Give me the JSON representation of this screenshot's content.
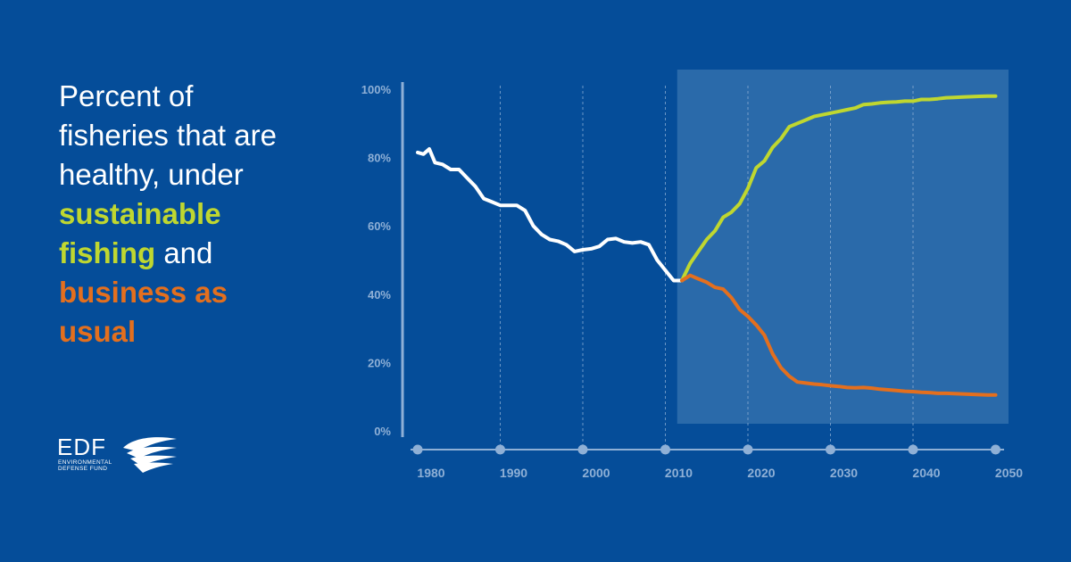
{
  "headline": {
    "line1": "Percent of",
    "line2": "fisheries that are",
    "line3": "healthy, under",
    "green1": "sustainable",
    "green2": "fishing",
    "mid": " and",
    "orange1": "business as",
    "orange2": "usual"
  },
  "colors": {
    "background": "#054d99",
    "historical": "#ffffff",
    "sustainable": "#bfd730",
    "business_as_usual": "#e36f1e",
    "projection_band": "#2a6aaa",
    "axis": "#8fb0d6"
  },
  "logo": {
    "name": "EDF",
    "subtitle_line1": "ENVIRONMENTAL",
    "subtitle_line2": "DEFENSE FUND",
    "icon": "wing-icon"
  },
  "chart_data": {
    "type": "line",
    "xlim": [
      1978,
      2050
    ],
    "ylim": [
      0,
      100
    ],
    "x_ticks": [
      1980,
      1990,
      2000,
      2010,
      2020,
      2030,
      2040,
      2050
    ],
    "x_tick_labels": [
      "1980",
      "1990",
      "2000",
      "2010",
      "2020",
      "2030",
      "2040",
      "2050"
    ],
    "y_ticks": [
      0,
      20,
      40,
      60,
      80,
      100
    ],
    "y_tick_labels": [
      "0%",
      "20%",
      "40%",
      "60%",
      "80%",
      "100%"
    ],
    "projection_region": [
      2011,
      2050
    ],
    "grid": "dashed vertical",
    "series": [
      {
        "key": "historical",
        "x": [
          1980,
          1980.7,
          1981.4,
          1982.1,
          1983,
          1984,
          1985,
          1986,
          1987,
          1988,
          1989,
          1990,
          1991,
          1992,
          1993,
          1994,
          1995,
          1996,
          1997,
          1998,
          1999,
          2000,
          2001,
          2002,
          2003,
          2004,
          2005,
          2006,
          2007,
          2008,
          2009,
          2010,
          2011,
          2012
        ],
        "values": [
          81.5,
          81,
          82.5,
          78.5,
          78,
          76.5,
          76.5,
          74,
          71.5,
          68,
          67,
          66,
          66,
          66,
          64.5,
          60,
          57.5,
          56,
          55.5,
          54.5,
          52.5,
          53,
          53.3,
          54,
          56,
          56.3,
          55.3,
          55,
          55.3,
          54.5,
          50,
          47,
          44,
          44
        ]
      },
      {
        "key": "sustainable",
        "x": [
          2012,
          2013,
          2014,
          2015,
          2016,
          2017,
          2018,
          2019,
          2020,
          2021,
          2022,
          2023,
          2024,
          2025,
          2026,
          2027,
          2028,
          2029,
          2030,
          2031,
          2032,
          2033,
          2034,
          2035,
          2036,
          2037,
          2038,
          2039,
          2040,
          2041,
          2042,
          2043,
          2044,
          2045,
          2046,
          2047,
          2048,
          2049,
          2050
        ],
        "values": [
          44,
          49,
          52.5,
          56,
          58.5,
          62.5,
          64,
          66.5,
          71,
          77,
          79,
          83,
          85.5,
          89,
          90,
          91,
          92,
          92.5,
          93,
          93.5,
          94,
          94.5,
          95.5,
          95.7,
          96,
          96.2,
          96.3,
          96.5,
          96.5,
          97,
          97,
          97.2,
          97.5,
          97.6,
          97.7,
          97.8,
          97.9,
          98,
          98
        ]
      },
      {
        "key": "business_as_usual",
        "x": [
          2012,
          2013,
          2014,
          2015,
          2016,
          2017,
          2018,
          2019,
          2020,
          2021,
          2022,
          2023,
          2024,
          2025,
          2026,
          2027,
          2028,
          2029,
          2030,
          2031,
          2032,
          2033,
          2034,
          2035,
          2036,
          2037,
          2038,
          2039,
          2040,
          2041,
          2042,
          2043,
          2044,
          2045,
          2046,
          2047,
          2048,
          2049,
          2050
        ],
        "values": [
          44,
          45.5,
          44.5,
          43.5,
          42,
          41.5,
          39,
          35.5,
          33.5,
          31,
          28,
          22.5,
          18.5,
          16,
          14.3,
          14,
          13.7,
          13.5,
          13.2,
          13,
          12.7,
          12.6,
          12.7,
          12.5,
          12.2,
          12,
          11.8,
          11.6,
          11.5,
          11.3,
          11.2,
          11,
          11,
          10.9,
          10.8,
          10.7,
          10.6,
          10.5,
          10.5
        ]
      }
    ]
  }
}
